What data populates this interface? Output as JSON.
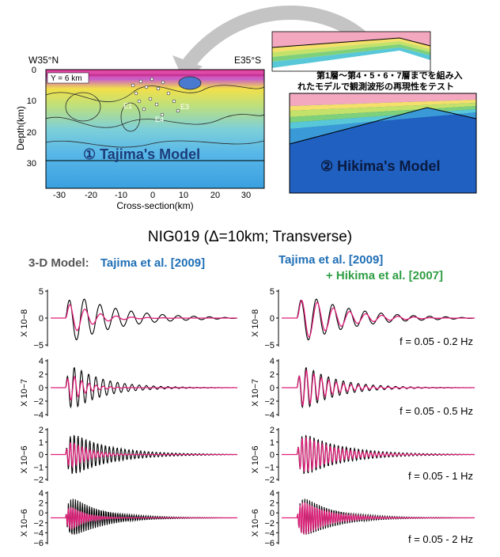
{
  "top": {
    "tajima": {
      "corner_left": "W35°N",
      "corner_right": "E35°S",
      "inset_label": "Y = 6 km",
      "ylabel": "Depth(km)",
      "xlabel": "Cross-section(km)",
      "model_label": "① Tajima's Model",
      "x_ticks": [
        "-30",
        "-20",
        "-10",
        "0",
        "10",
        "20",
        "30"
      ],
      "y_ticks": [
        "0",
        "10",
        "20",
        "30"
      ],
      "event_labels": [
        "E1",
        "E3",
        "E4"
      ]
    },
    "hikima": {
      "note_line1": "第1層～第4・5・6・7層までを組み入",
      "note_line2": "れたモデルで観測波形の再現性をテスト",
      "model_label": "② Hikima's Model"
    }
  },
  "station_title": "NIG019 (Δ=10km; Transverse)",
  "left_heading": {
    "prefix": "3-D Model:",
    "model": "Tajima et al. [2009]"
  },
  "right_heading": {
    "line1": "Tajima et al. [2009]",
    "line2": "+ Hikima et al. [2007]"
  },
  "colors": {
    "observed": "#000000",
    "synthetic": "#e0207a",
    "tajima_blue": "#1f6fb5",
    "hikima_green": "#2f9e44"
  },
  "panels": [
    {
      "scale": "X 10−8",
      "freq": "f = 0.05 - 0.2 Hz",
      "ticks": [
        "5",
        "0",
        "−5"
      ]
    },
    {
      "scale": "X 10−7",
      "freq": "f = 0.05 - 0.5 Hz",
      "ticks": [
        "4",
        "2",
        "0",
        "−2",
        "−4"
      ]
    },
    {
      "scale": "X 10−6",
      "freq": "f = 0.05 - 1 Hz",
      "ticks": [
        "2",
        "1",
        "0",
        "−1",
        "−2"
      ]
    },
    {
      "scale": "X 10−6",
      "freq": "f = 0.05 - 2 Hz",
      "ticks": [
        "4",
        "2",
        "0",
        "−2",
        "−4",
        "−6"
      ]
    }
  ]
}
